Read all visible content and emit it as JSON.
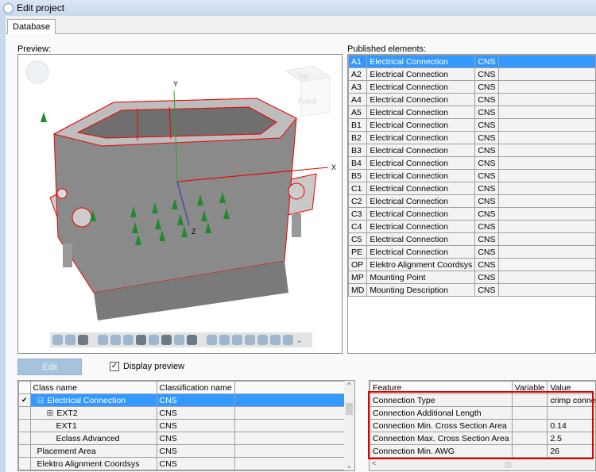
{
  "window": {
    "title": "Edit project"
  },
  "tabs": [
    {
      "label": "Database"
    }
  ],
  "preview": {
    "label": "Preview:",
    "axis_x": "X",
    "axis_y": "Y",
    "axis_z": "Z",
    "viewcube_top": "Top",
    "viewcube_front": "Front"
  },
  "published": {
    "label": "Published elements:",
    "rows": [
      [
        "A1",
        "Electrical Connection",
        "CNS"
      ],
      [
        "A2",
        "Electrical Connection",
        "CNS"
      ],
      [
        "A3",
        "Electrical Connection",
        "CNS"
      ],
      [
        "A4",
        "Electrical Connection",
        "CNS"
      ],
      [
        "A5",
        "Electrical Connection",
        "CNS"
      ],
      [
        "B1",
        "Electrical Connection",
        "CNS"
      ],
      [
        "B2",
        "Electrical Connection",
        "CNS"
      ],
      [
        "B3",
        "Electrical Connection",
        "CNS"
      ],
      [
        "B4",
        "Electrical Connection",
        "CNS"
      ],
      [
        "B5",
        "Electrical Connection",
        "CNS"
      ],
      [
        "C1",
        "Electrical Connection",
        "CNS"
      ],
      [
        "C2",
        "Electrical Connection",
        "CNS"
      ],
      [
        "C3",
        "Electrical Connection",
        "CNS"
      ],
      [
        "C4",
        "Electrical Connection",
        "CNS"
      ],
      [
        "C5",
        "Electrical Connection",
        "CNS"
      ],
      [
        "PE",
        "Electrical Connection",
        "CNS"
      ],
      [
        "OP",
        "Elektro Alignment Coordsys",
        "CNS"
      ],
      [
        "MP",
        "Mounting Point",
        "CNS"
      ],
      [
        "MD",
        "Mounting Description",
        "CNS"
      ]
    ]
  },
  "edit_button": "Edit",
  "display_preview": {
    "label": "Display preview",
    "checked": true
  },
  "classes": {
    "headers": [
      "Class name",
      "Classification name"
    ],
    "rows": [
      {
        "name": "Electrical Connection",
        "cls": "CNS",
        "checked": true,
        "expander": "⊟",
        "indent": 1
      },
      {
        "name": "EXT2",
        "cls": "CNS",
        "checked": false,
        "expander": "⊞",
        "indent": 2
      },
      {
        "name": "EXT1",
        "cls": "CNS",
        "checked": false,
        "expander": "",
        "indent": 3
      },
      {
        "name": "Eclass Advanced",
        "cls": "CNS",
        "checked": false,
        "expander": "",
        "indent": 3
      },
      {
        "name": "Placement Area",
        "cls": "CNS",
        "checked": false,
        "expander": "",
        "indent": 1
      },
      {
        "name": "Elektro Alignment Coordsys",
        "cls": "CNS",
        "checked": false,
        "expander": "",
        "indent": 1
      }
    ]
  },
  "features": {
    "headers": [
      "Feature",
      "Variable",
      "Value"
    ],
    "rows": [
      [
        "Connection Type",
        "",
        "crimp connection"
      ],
      [
        "Connection Additional Length",
        "",
        ""
      ],
      [
        "Connection Min. Cross Section Area",
        "",
        "0.14"
      ],
      [
        "Connection Max. Cross Section Area",
        "",
        "2.5"
      ],
      [
        "Connection Min. AWG",
        "",
        "26"
      ]
    ]
  },
  "colors": {
    "selection": "#3399ff",
    "highlight_box": "#e00000",
    "model_outline": "#e00000",
    "cones": "#1f8a2e"
  }
}
